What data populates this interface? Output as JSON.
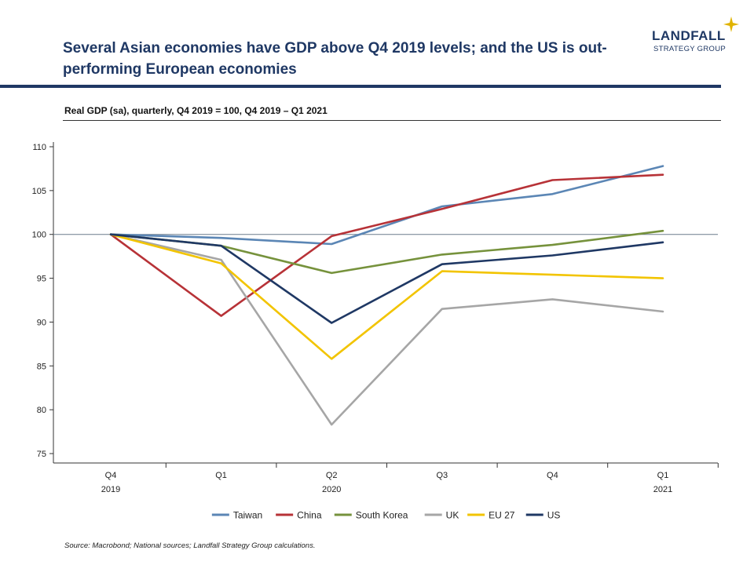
{
  "header": {
    "title": "Several Asian economies have GDP above Q4 2019 levels; and the US is out-performing European economies",
    "logo_name": "LANDFALL",
    "logo_sub": "STRATEGY GROUP",
    "subtitle": "Real GDP (sa), quarterly, Q4 2019 = 100, Q4 2019 – Q1 2021"
  },
  "footer": {
    "source": "Source: Macrobond;  National sources; Landfall Strategy Group calculations."
  },
  "chart_data": {
    "type": "line",
    "title": "",
    "xlabel": "",
    "ylabel": "",
    "categories": [
      "Q4",
      "Q1",
      "Q2",
      "Q3",
      "Q4",
      "Q1"
    ],
    "year_labels": [
      {
        "index": 0,
        "label": "2019"
      },
      {
        "index": 2,
        "label": "2020"
      },
      {
        "index": 5,
        "label": "2021"
      }
    ],
    "ylim": [
      75,
      110
    ],
    "yticks": [
      75,
      80,
      85,
      90,
      95,
      100,
      105,
      110
    ],
    "reference_line": 100,
    "grid": false,
    "legend_position": "bottom",
    "series": [
      {
        "name": "Taiwan",
        "color": "#5b86b5",
        "values": [
          100,
          99.6,
          98.9,
          103.2,
          104.6,
          107.8
        ]
      },
      {
        "name": "China",
        "color": "#b73237",
        "values": [
          100,
          90.7,
          99.8,
          102.9,
          106.2,
          106.8
        ]
      },
      {
        "name": "South Korea",
        "color": "#76923c",
        "values": [
          100,
          98.7,
          95.6,
          97.7,
          98.8,
          100.4
        ]
      },
      {
        "name": "UK",
        "color": "#a6a6a6",
        "values": [
          100,
          97.1,
          78.3,
          91.5,
          92.6,
          91.2
        ]
      },
      {
        "name": "EU 27",
        "color": "#f2c400",
        "values": [
          100,
          96.7,
          85.8,
          95.8,
          95.4,
          95.0
        ]
      },
      {
        "name": "US",
        "color": "#1f3864",
        "values": [
          100,
          98.7,
          89.9,
          96.6,
          97.6,
          99.1
        ]
      }
    ]
  }
}
